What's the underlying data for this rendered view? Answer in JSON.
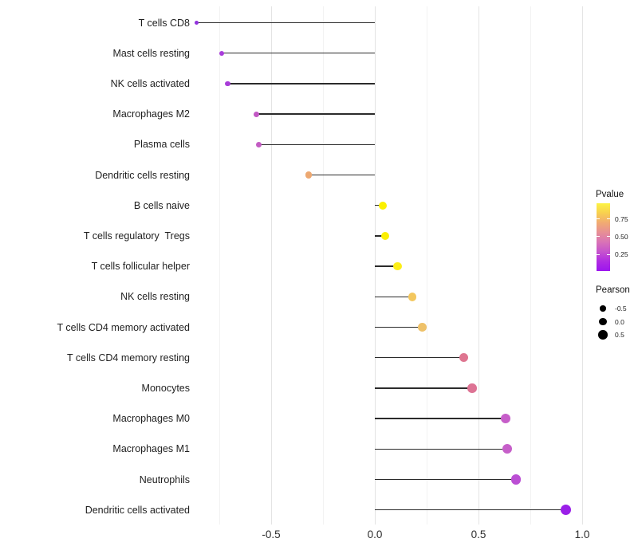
{
  "chart_data": {
    "type": "scatter",
    "variant": "horizontal-lollipop",
    "title": "",
    "xlabel": "",
    "ylabel": "",
    "categories": [
      "T cells CD8",
      "Mast cells resting",
      "NK cells activated",
      "Macrophages M2",
      "Plasma cells",
      "Dendritic cells resting",
      "B cells naive",
      "T cells regulatory  Tregs",
      "T cells follicular helper",
      "NK cells resting",
      "T cells CD4 memory activated",
      "T cells CD4 memory resting",
      "Monocytes",
      "Macrophages M0",
      "Macrophages M1",
      "Neutrophils",
      "Dendritic cells activated"
    ],
    "series": [
      {
        "name": "Pearson",
        "values": [
          -0.86,
          -0.74,
          -0.71,
          -0.57,
          -0.56,
          -0.32,
          0.04,
          0.05,
          0.11,
          0.18,
          0.23,
          0.43,
          0.47,
          0.63,
          0.64,
          0.68,
          0.92
        ]
      }
    ],
    "point_colors": [
      "#9232dd",
      "#a93ddb",
      "#a83cd8",
      "#c258c4",
      "#c35cc3",
      "#eda871",
      "#fbf000",
      "#fbef02",
      "#fcee18",
      "#f3c75e",
      "#eec169",
      "#de7590",
      "#dd7394",
      "#c65ec9",
      "#c65fc9",
      "#bb4fd4",
      "#9a1fe8"
    ],
    "x_axis": {
      "tick_labels": [
        "-0.5",
        "0.0",
        "0.5",
        "1.0"
      ],
      "tick_values": [
        -0.5,
        0.0,
        0.5,
        1.0
      ],
      "minor_tick_values": [
        -0.75,
        -0.25,
        0.25,
        0.75
      ],
      "xlim": [
        -0.9,
        1.05
      ]
    },
    "grid": "vertical major and minor gridlines, white panel background, no axis lines",
    "baseline_value": 0.0,
    "legend_position": "right",
    "legends": {
      "pvalue": {
        "title": "Pvalue",
        "tick_labels": [
          "0.75",
          "0.50",
          "0.25"
        ],
        "gradient_top_color": "#fcf343",
        "gradient_bottom_color": "#9c15ee",
        "gradient_stops": [
          "#fcf343",
          "#f8d04f",
          "#f1ab72",
          "#e78f95",
          "#d973b6",
          "#c654cd",
          "#b02ce2",
          "#9c15ee"
        ]
      },
      "pearson": {
        "title": "Pearson",
        "labels": [
          "-0.5",
          "0.0",
          "0.5"
        ],
        "values": [
          -0.5,
          0.0,
          0.5
        ],
        "dot_color": "#000000"
      }
    },
    "segment_color": "#2b2b2b"
  }
}
